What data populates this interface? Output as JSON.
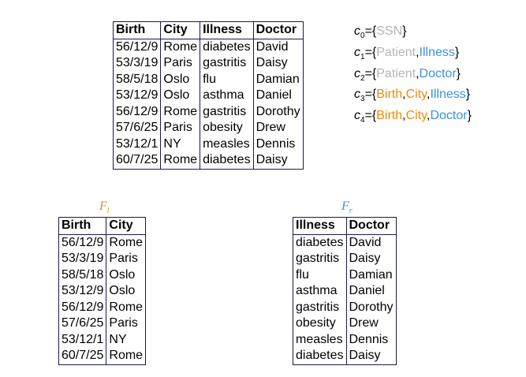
{
  "colors": {
    "plain": "#b5b5b5",
    "left": "#f08a0a",
    "right": "#3a92e0",
    "border": "#1a1a4e"
  },
  "main_table": {
    "headers": [
      "Birth",
      "City",
      "Illness",
      "Doctor"
    ],
    "rows": [
      [
        "56/12/9",
        "Rome",
        "diabetes",
        "David"
      ],
      [
        "53/3/19",
        "Paris",
        "gastritis",
        "Daisy"
      ],
      [
        "58/5/18",
        "Oslo",
        "flu",
        "Damian"
      ],
      [
        "53/12/9",
        "Oslo",
        "asthma",
        "Daniel"
      ],
      [
        "56/12/9",
        "Rome",
        "gastritis",
        "Dorothy"
      ],
      [
        "57/6/25",
        "Paris",
        "obesity",
        "Drew"
      ],
      [
        "53/12/1",
        "NY",
        "measles",
        "Dennis"
      ],
      [
        "60/7/25",
        "Rome",
        "diabetes",
        "Daisy"
      ]
    ]
  },
  "constraints": [
    {
      "name": "c",
      "index": "0",
      "attrs": [
        {
          "text": "SSN",
          "color": "plain"
        }
      ]
    },
    {
      "name": "c",
      "index": "1",
      "attrs": [
        {
          "text": "Patient",
          "color": "plain"
        },
        {
          "text": "Illness",
          "color": "right"
        }
      ]
    },
    {
      "name": "c",
      "index": "2",
      "attrs": [
        {
          "text": "Patient",
          "color": "plain"
        },
        {
          "text": "Doctor",
          "color": "right"
        }
      ]
    },
    {
      "name": "c",
      "index": "3",
      "attrs": [
        {
          "text": "Birth",
          "color": "left"
        },
        {
          "text": "City",
          "color": "left"
        },
        {
          "text": "Illness",
          "color": "right"
        }
      ]
    },
    {
      "name": "c",
      "index": "4",
      "attrs": [
        {
          "text": "Birth",
          "color": "left"
        },
        {
          "text": "City",
          "color": "left"
        },
        {
          "text": "Doctor",
          "color": "right"
        }
      ]
    }
  ],
  "left_fragment": {
    "label": "F",
    "label_sub": "l",
    "headers": [
      "Birth",
      "City"
    ],
    "rows": [
      [
        "56/12/9",
        "Rome"
      ],
      [
        "53/3/19",
        "Paris"
      ],
      [
        "58/5/18",
        "Oslo"
      ],
      [
        "53/12/9",
        "Oslo"
      ],
      [
        "56/12/9",
        "Rome"
      ],
      [
        "57/6/25",
        "Paris"
      ],
      [
        "53/12/1",
        "NY"
      ],
      [
        "60/7/25",
        "Rome"
      ]
    ]
  },
  "right_fragment": {
    "label": "F",
    "label_sub": "r",
    "headers": [
      "Illness",
      "Doctor"
    ],
    "rows": [
      [
        "diabetes",
        "David"
      ],
      [
        "gastritis",
        "Daisy"
      ],
      [
        "flu",
        "Damian"
      ],
      [
        "asthma",
        "Daniel"
      ],
      [
        "gastritis",
        "Dorothy"
      ],
      [
        "obesity",
        "Drew"
      ],
      [
        "measles",
        "Dennis"
      ],
      [
        "diabetes",
        "Daisy"
      ]
    ]
  }
}
